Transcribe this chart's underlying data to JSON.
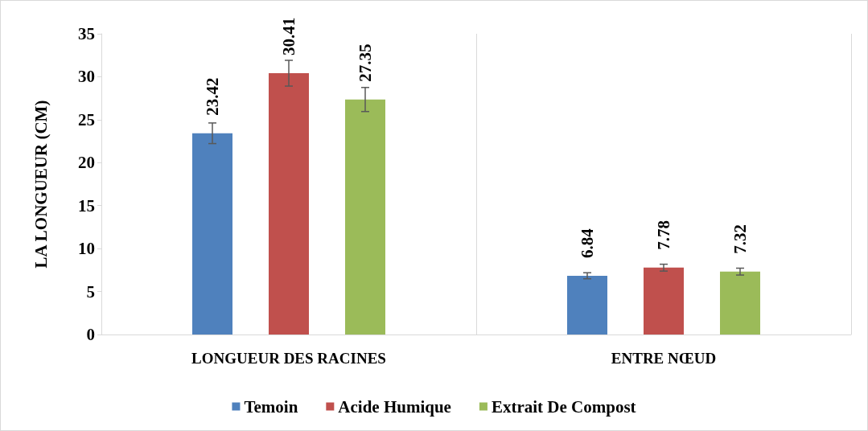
{
  "chart_data": {
    "type": "bar",
    "ylabel": "LA LONGUEUR (CM)",
    "categories": [
      "LONGUEUR DES RACINES",
      "ENTRE NŒUD"
    ],
    "series": [
      {
        "name": "Temoin",
        "color": "#4f81bd",
        "values": [
          23.42,
          6.84
        ],
        "errors": [
          1.2,
          0.35
        ]
      },
      {
        "name": "Acide Humique",
        "color": "#c0504d",
        "values": [
          30.41,
          7.78
        ],
        "errors": [
          1.5,
          0.4
        ]
      },
      {
        "name": "Extrait De Compost",
        "color": "#9bbb59",
        "values": [
          27.35,
          7.32
        ],
        "errors": [
          1.4,
          0.4
        ]
      }
    ],
    "ylim": [
      0,
      35
    ],
    "yticks": [
      0,
      5,
      10,
      15,
      20,
      25,
      30,
      35
    ],
    "grid": false,
    "legend": "bottom",
    "data_labels": true
  }
}
